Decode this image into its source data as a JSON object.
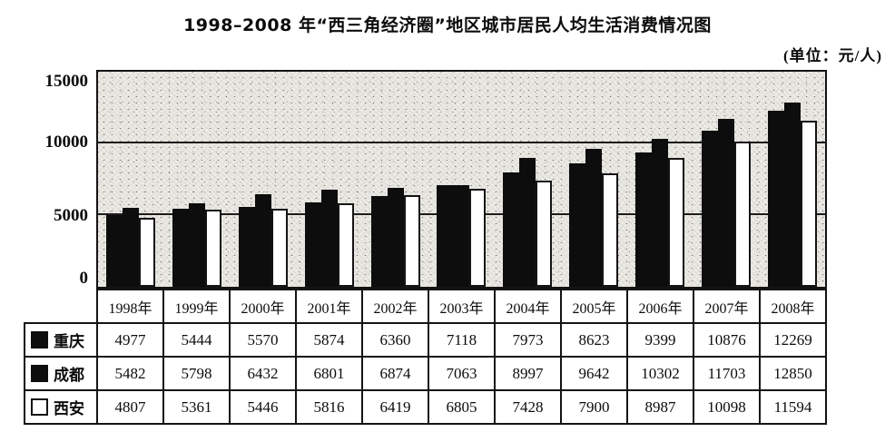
{
  "page": {
    "title": "1998–2008 年“西三角经济圈”地区城市居民人均生活消费情况图",
    "unit_label": "(单位：元/人)"
  },
  "chart_data": {
    "type": "bar",
    "title": "1998–2008 年“西三角经济圈”地区城市居民人均生活消费情况图",
    "unit": "元/人",
    "categories": [
      "1998年",
      "1999年",
      "2000年",
      "2001年",
      "2002年",
      "2003年",
      "2004年",
      "2005年",
      "2006年",
      "2007年",
      "2008年"
    ],
    "series": [
      {
        "name": "重庆",
        "fill": "black",
        "values": [
          4977,
          5444,
          5570,
          5874,
          6360,
          7118,
          7973,
          8623,
          9399,
          10876,
          12269
        ]
      },
      {
        "name": "成都",
        "fill": "black",
        "values": [
          5482,
          5798,
          6432,
          6801,
          6874,
          7063,
          8997,
          9642,
          10302,
          11703,
          12850
        ]
      },
      {
        "name": "西安",
        "fill": "white",
        "values": [
          4807,
          5361,
          5446,
          5816,
          6419,
          6805,
          7428,
          7900,
          8987,
          10098,
          11594
        ]
      }
    ],
    "ylim": [
      0,
      15000
    ],
    "yticks": [
      0,
      5000,
      10000,
      15000
    ],
    "grid": true,
    "legend_position": "table-left",
    "plot_background": "speckled-gray",
    "colors": {
      "bar_black": "#0d0d0d",
      "bar_white_fill": "#ffffff",
      "border": "#141414",
      "plot_bg": "#eceae4"
    }
  }
}
